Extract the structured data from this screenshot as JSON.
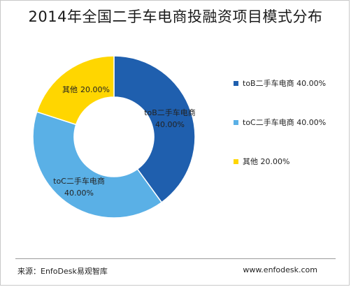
{
  "colors": {
    "toB": "#1f5fae",
    "toC": "#5ab0e6",
    "other": "#ffd600"
  },
  "chart_data": {
    "type": "pie",
    "donut": true,
    "title": "2014年全国二手车电商投融资项目模式分布",
    "legend_position": "right",
    "slices": [
      {
        "name": "toB二手车电商",
        "value": 40.0,
        "label": "40.00%",
        "color": "#1f5fae"
      },
      {
        "name": "toC二手车电商",
        "value": 40.0,
        "label": "40.00%",
        "color": "#5ab0e6"
      },
      {
        "name": "其他",
        "value": 20.0,
        "label": "20.00%",
        "color": "#ffd600"
      }
    ]
  },
  "footer": {
    "source": "来源：EnfoDesk易观智库",
    "website": "www.enfodesk.com"
  }
}
